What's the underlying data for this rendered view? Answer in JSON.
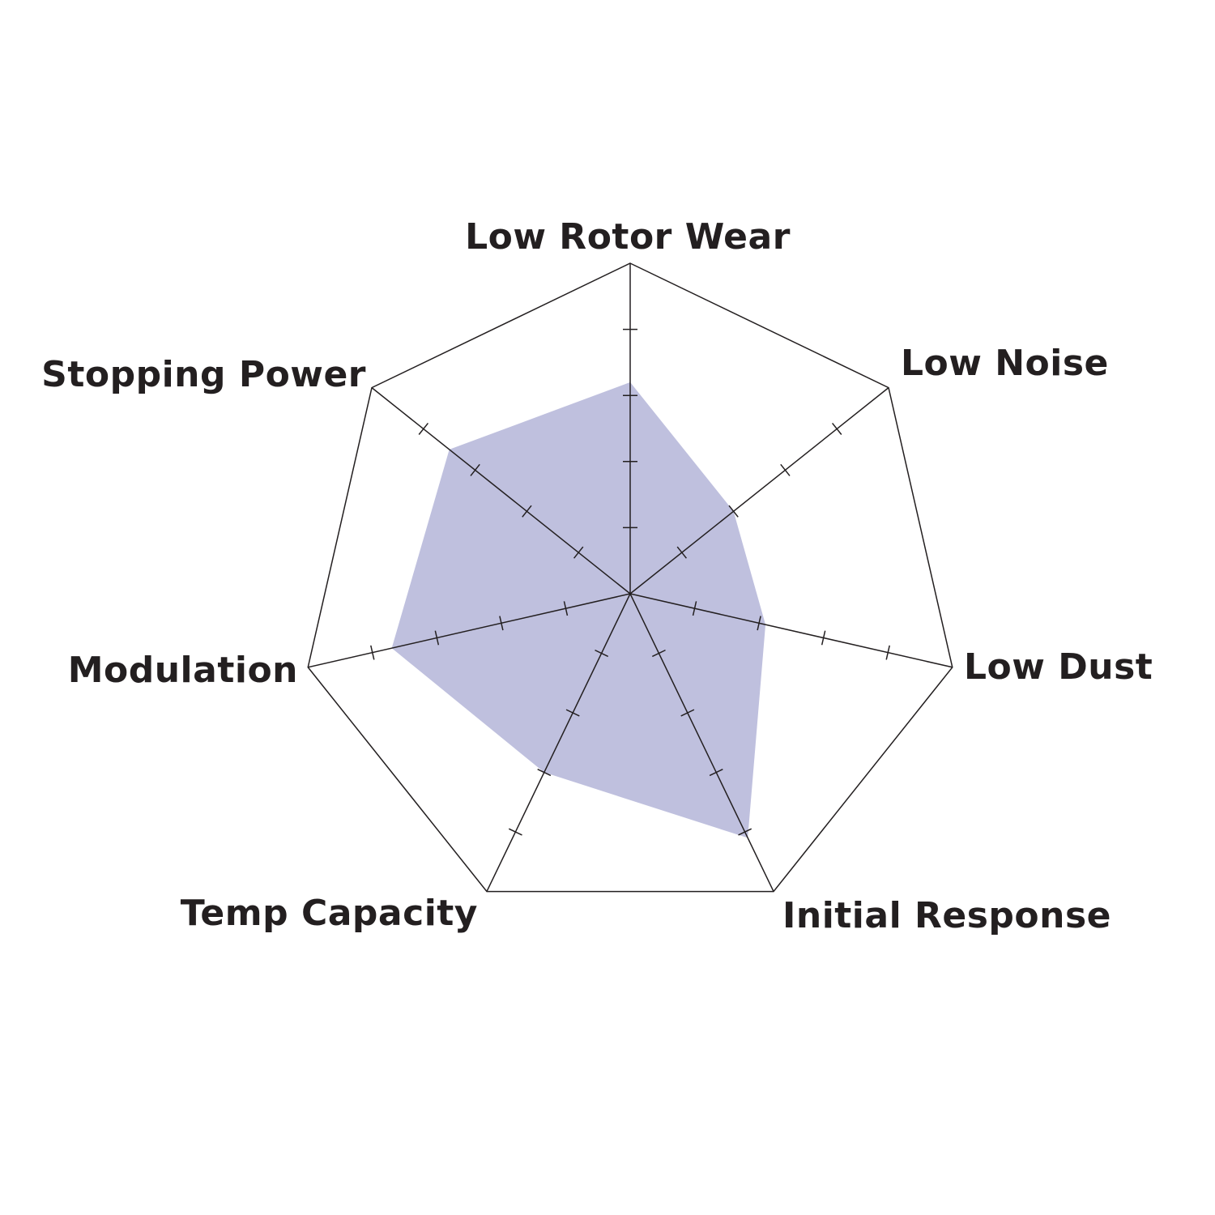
{
  "chart_data": {
    "type": "radar",
    "categories": [
      "Low Rotor Wear",
      "Low Noise",
      "Low Dust",
      "Initial Response",
      "Temp Capacity",
      "Modulation",
      "Stopping Power"
    ],
    "series": [
      {
        "values": [
          3.2,
          2.0,
          2.1,
          4.1,
          3.0,
          3.7,
          3.5
        ]
      }
    ],
    "rlim": [
      0,
      5
    ],
    "tick_count": 5,
    "grid": false,
    "colors": {
      "fill": "#bfc0de",
      "axis": "#231f20",
      "label": "#231f20"
    }
  }
}
